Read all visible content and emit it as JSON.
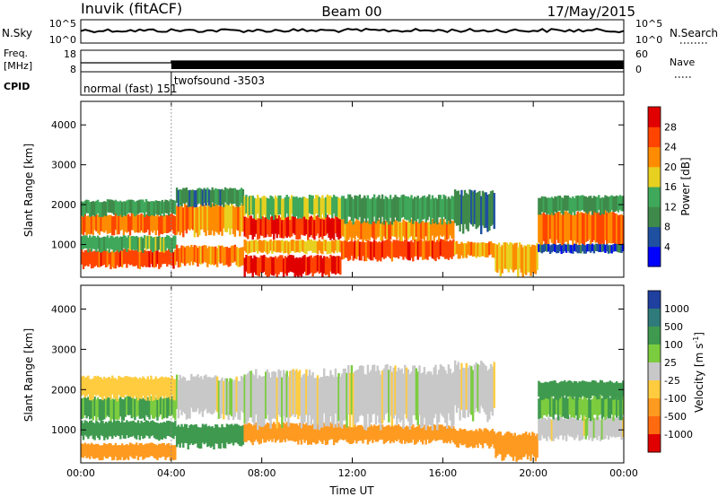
{
  "header": {
    "station": "Inuvik (fitACF)",
    "beam": "Beam 00",
    "date": "17/May/2015"
  },
  "top_panels": {
    "nsky": {
      "label": "N.Sky",
      "left_ticks": [
        "10^5",
        "10^0"
      ],
      "right_label": "N.Search",
      "right_ticks": [
        "10^5",
        "10^0"
      ]
    },
    "freq": {
      "label_line1": "Freq.",
      "label_line2": "[MHz]",
      "left_ticks": [
        "18",
        "8"
      ],
      "right_label": "Nave",
      "right_ticks": [
        "60",
        "0"
      ]
    },
    "cpid": {
      "label": "CPID",
      "segments": [
        {
          "label": "normal (fast) 151",
          "start_hour": 0,
          "end_hour": 4.0
        },
        {
          "label": "twofsound -3503",
          "start_hour": 4.0,
          "end_hour": 24
        }
      ]
    }
  },
  "chart_data": [
    {
      "type": "heatmap",
      "name": "power-panel",
      "xlabel": "",
      "ylabel": "Slant Range [km]",
      "xlim": [
        0,
        24
      ],
      "ylim": [
        180,
        4590
      ],
      "yticks": [
        1000,
        2000,
        3000,
        4000
      ],
      "colorbar": {
        "label": "Power [dB]",
        "ticks": [
          "4",
          "8",
          "12",
          "16",
          "20",
          "24",
          "28"
        ],
        "range": [
          0,
          32
        ],
        "colors": [
          "#0000ff",
          "#1f4fa0",
          "#3f8a4a",
          "#3fa85a",
          "#e8d020",
          "#ff8c00",
          "#ff4400",
          "#e00000"
        ]
      },
      "bands": [
        {
          "t0": 0.0,
          "t1": 4.2,
          "r0": 450,
          "r1": 850,
          "value": 26
        },
        {
          "t0": 0.0,
          "t1": 4.2,
          "r0": 850,
          "r1": 1200,
          "value": 14
        },
        {
          "t0": 0.0,
          "t1": 4.2,
          "r0": 1300,
          "r1": 1750,
          "value": 24
        },
        {
          "t0": 0.0,
          "t1": 4.2,
          "r0": 1750,
          "r1": 2100,
          "value": 12
        },
        {
          "t0": 4.2,
          "t1": 7.2,
          "r0": 500,
          "r1": 950,
          "value": 22
        },
        {
          "t0": 4.2,
          "t1": 7.2,
          "r0": 1300,
          "r1": 2000,
          "value": 22
        },
        {
          "t0": 4.2,
          "t1": 7.2,
          "r0": 2000,
          "r1": 2400,
          "value": 10
        },
        {
          "t0": 7.2,
          "t1": 11.5,
          "r0": 250,
          "r1": 700,
          "value": 28
        },
        {
          "t0": 7.2,
          "t1": 11.5,
          "r0": 800,
          "r1": 1100,
          "value": 20
        },
        {
          "t0": 7.2,
          "t1": 11.5,
          "r0": 1200,
          "r1": 1700,
          "value": 28
        },
        {
          "t0": 7.2,
          "t1": 11.5,
          "r0": 1700,
          "r1": 2200,
          "value": 16
        },
        {
          "t0": 11.5,
          "t1": 16.5,
          "r0": 650,
          "r1": 1100,
          "value": 26
        },
        {
          "t0": 11.5,
          "t1": 16.5,
          "r0": 1150,
          "r1": 1600,
          "value": 22
        },
        {
          "t0": 11.5,
          "t1": 16.5,
          "r0": 1600,
          "r1": 2200,
          "value": 12
        },
        {
          "t0": 16.5,
          "t1": 18.3,
          "r0": 700,
          "r1": 1050,
          "value": 22
        },
        {
          "t0": 16.5,
          "t1": 18.3,
          "r0": 1400,
          "r1": 2300,
          "value": 8
        },
        {
          "t0": 18.3,
          "t1": 20.2,
          "r0": 300,
          "r1": 1000,
          "value": 20
        },
        {
          "t0": 20.2,
          "t1": 24.0,
          "r0": 1000,
          "r1": 1800,
          "value": 24
        },
        {
          "t0": 20.2,
          "t1": 24.0,
          "r0": 1800,
          "r1": 2200,
          "value": 12
        },
        {
          "t0": 20.2,
          "t1": 24.0,
          "r0": 800,
          "r1": 1000,
          "value": 6
        }
      ]
    },
    {
      "type": "heatmap",
      "name": "velocity-panel",
      "xlabel": "Time UT",
      "ylabel": "Slant Range [km]",
      "xlim": [
        0,
        24
      ],
      "ylim": [
        180,
        4590
      ],
      "yticks": [
        1000,
        2000,
        3000,
        4000
      ],
      "xticks": [
        "00:00",
        "04:00",
        "08:00",
        "12:00",
        "16:00",
        "20:00",
        "00:00"
      ],
      "colorbar": {
        "label": "Velocity [m s^-1]",
        "ticks": [
          "1000",
          "500",
          "100",
          "25",
          "-25",
          "-100",
          "-500",
          "-1000"
        ],
        "colors": [
          "#2040a0",
          "#2f7a7a",
          "#3f9a4f",
          "#7ccc3f",
          "#c8c8c8",
          "#ffcc40",
          "#ff9a20",
          "#ff6a10",
          "#e00000"
        ]
      },
      "bands": [
        {
          "t0": 0.0,
          "t1": 4.2,
          "r0": 300,
          "r1": 650,
          "value": -200
        },
        {
          "t0": 0.0,
          "t1": 4.2,
          "r0": 800,
          "r1": 1200,
          "value": 150
        },
        {
          "t0": 0.0,
          "t1": 4.2,
          "r0": 1300,
          "r1": 1800,
          "value": 60
        },
        {
          "t0": 0.0,
          "t1": 4.2,
          "r0": 1800,
          "r1": 2300,
          "value": -60
        },
        {
          "t0": 4.2,
          "t1": 7.2,
          "r0": 600,
          "r1": 1100,
          "value": 120
        },
        {
          "t0": 4.2,
          "t1": 7.2,
          "r0": 1400,
          "r1": 2300,
          "value": 0
        },
        {
          "t0": 7.2,
          "t1": 11.5,
          "r0": 700,
          "r1": 1150,
          "value": -150
        },
        {
          "t0": 7.2,
          "t1": 11.5,
          "r0": 1200,
          "r1": 2400,
          "value": 0
        },
        {
          "t0": 11.5,
          "t1": 16.5,
          "r0": 700,
          "r1": 1100,
          "value": -150
        },
        {
          "t0": 11.5,
          "t1": 16.5,
          "r0": 1200,
          "r1": 2500,
          "value": 0
        },
        {
          "t0": 16.5,
          "t1": 18.3,
          "r0": 600,
          "r1": 1000,
          "value": -200
        },
        {
          "t0": 16.5,
          "t1": 18.3,
          "r0": 1400,
          "r1": 2600,
          "value": 0
        },
        {
          "t0": 18.3,
          "t1": 20.2,
          "r0": 300,
          "r1": 900,
          "value": -200
        },
        {
          "t0": 20.2,
          "t1": 24.0,
          "r0": 800,
          "r1": 1300,
          "value": 0
        },
        {
          "t0": 20.2,
          "t1": 24.0,
          "r0": 1300,
          "r1": 1800,
          "value": 60
        },
        {
          "t0": 20.2,
          "t1": 24.0,
          "r0": 1800,
          "r1": 2200,
          "value": 150
        }
      ]
    }
  ]
}
